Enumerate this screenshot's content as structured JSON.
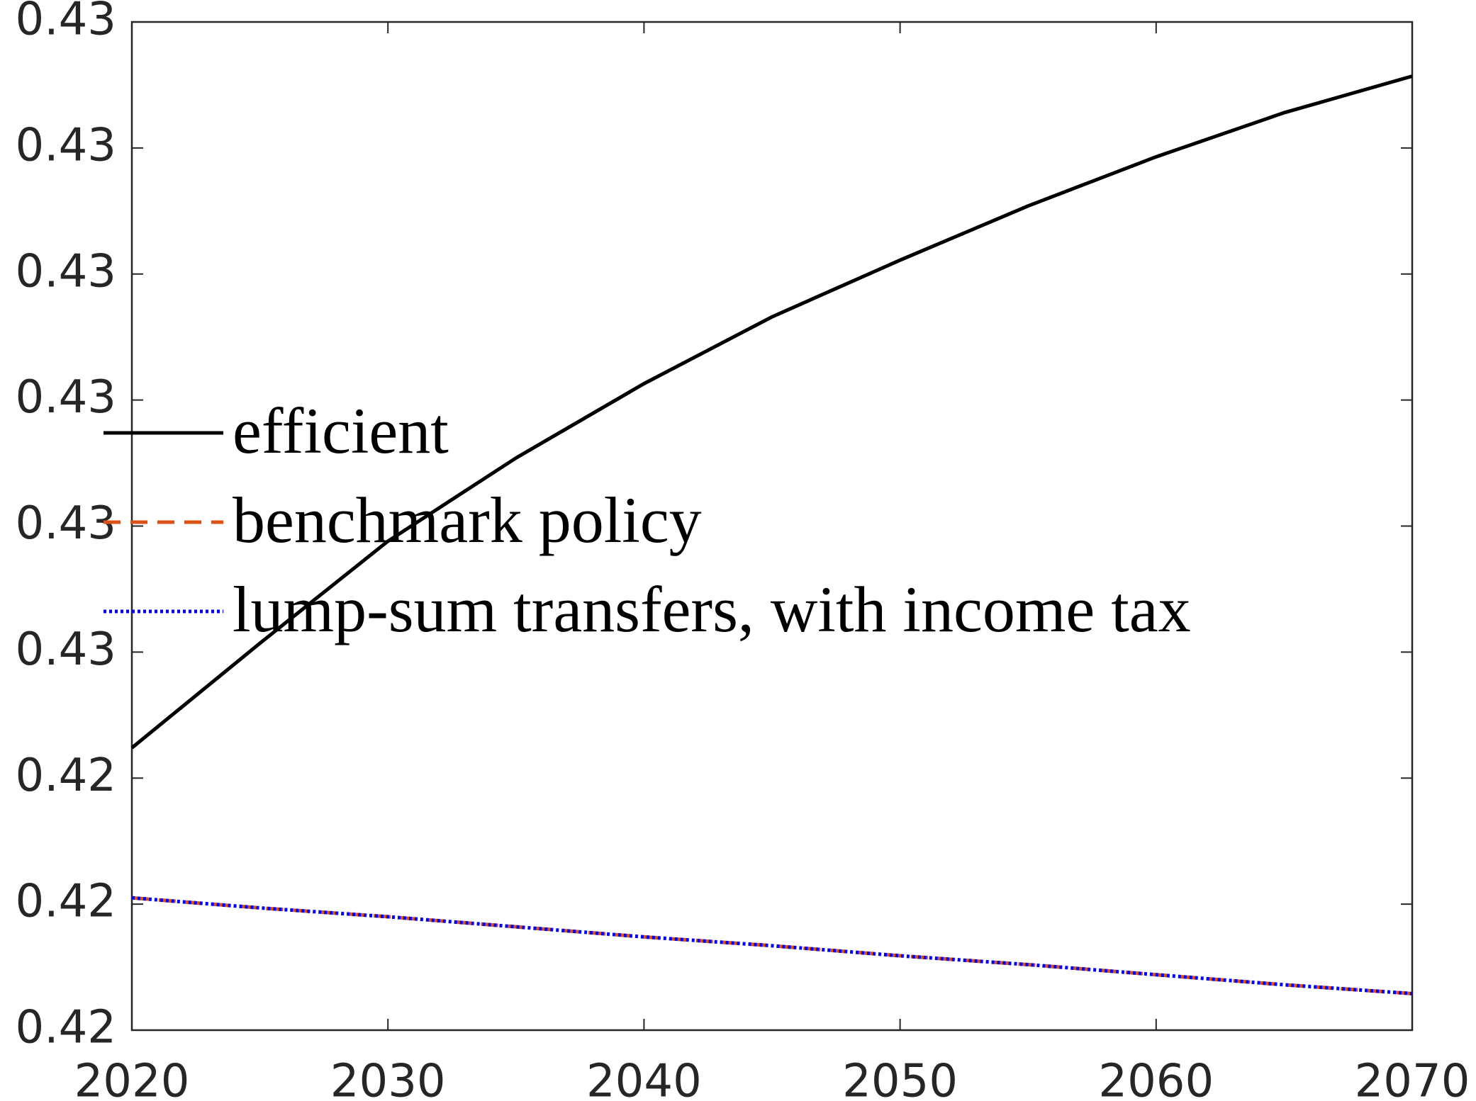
{
  "chart_data": {
    "type": "line",
    "x": [
      2020,
      2025,
      2030,
      2035,
      2040,
      2045,
      2050,
      2055,
      2060,
      2065,
      2070
    ],
    "series": [
      {
        "name": "efficient",
        "color": "#000000",
        "dash": "solid",
        "values": [
          0.42424,
          0.42507,
          0.42588,
          0.42654,
          0.42713,
          0.42766,
          0.42811,
          0.42854,
          0.42893,
          0.42928,
          0.42957
        ]
      },
      {
        "name": "benchmark policy",
        "color": "#D95319",
        "dash": "dashed",
        "values": [
          0.42305,
          0.42297,
          0.4229,
          0.42282,
          0.42274,
          0.42267,
          0.42259,
          0.42252,
          0.42244,
          0.42236,
          0.42229
        ]
      },
      {
        "name": "lump-sum transfers, with income tax",
        "color": "#0000FF",
        "dash": "dotted",
        "values": [
          0.42305,
          0.42297,
          0.4229,
          0.42282,
          0.42274,
          0.42267,
          0.42259,
          0.42252,
          0.42244,
          0.42236,
          0.42229
        ]
      }
    ],
    "xlim": [
      2020,
      2070
    ],
    "xticks": [
      2020,
      2030,
      2040,
      2050,
      2060,
      2070
    ],
    "ylim": [
      0.422,
      0.43
    ],
    "yticks": [
      {
        "value": 0.422,
        "label": "0.42"
      },
      {
        "value": 0.423,
        "label": "0.42"
      },
      {
        "value": 0.424,
        "label": "0.42"
      },
      {
        "value": 0.425,
        "label": "0.43"
      },
      {
        "value": 0.426,
        "label": "0.43"
      },
      {
        "value": 0.427,
        "label": "0.43"
      },
      {
        "value": 0.428,
        "label": "0.43"
      },
      {
        "value": 0.429,
        "label": "0.43"
      },
      0.43
    ],
    "grid": false,
    "legend": "left"
  }
}
